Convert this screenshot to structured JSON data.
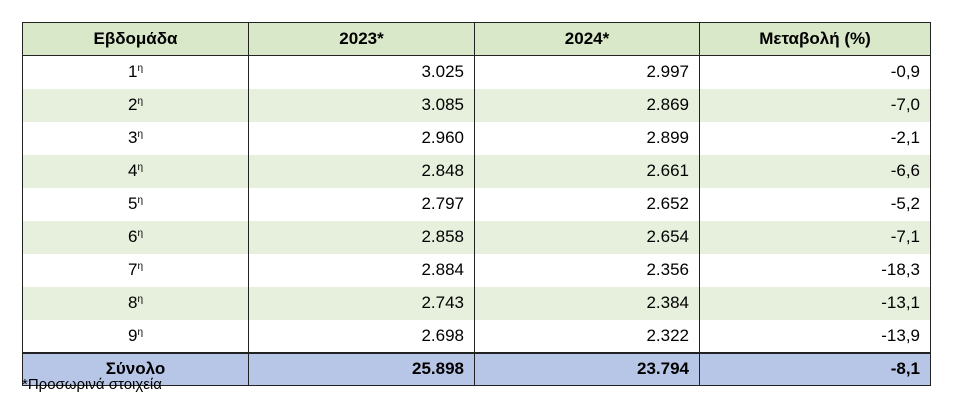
{
  "table": {
    "headers": [
      "Εβδομάδα",
      "2023*",
      "2024*",
      "Μεταβολή (%)"
    ],
    "rows": [
      {
        "week": "1",
        "sup": "η",
        "y2023": "3.025",
        "y2024": "2.997",
        "change": "-0,9"
      },
      {
        "week": "2",
        "sup": "η",
        "y2023": "3.085",
        "y2024": "2.869",
        "change": "-7,0"
      },
      {
        "week": "3",
        "sup": "η",
        "y2023": "2.960",
        "y2024": "2.899",
        "change": "-2,1"
      },
      {
        "week": "4",
        "sup": "η",
        "y2023": "2.848",
        "y2024": "2.661",
        "change": "-6,6"
      },
      {
        "week": "5",
        "sup": "η",
        "y2023": "2.797",
        "y2024": "2.652",
        "change": "-5,2"
      },
      {
        "week": "6",
        "sup": "η",
        "y2023": "2.858",
        "y2024": "2.654",
        "change": "-7,1"
      },
      {
        "week": "7",
        "sup": "η",
        "y2023": "2.884",
        "y2024": "2.356",
        "change": "-18,3"
      },
      {
        "week": "8",
        "sup": "η",
        "y2023": "2.743",
        "y2024": "2.384",
        "change": "-13,1"
      },
      {
        "week": "9",
        "sup": "η",
        "y2023": "2.698",
        "y2024": "2.322",
        "change": "-13,9"
      }
    ],
    "total": {
      "label": "Σύνολο",
      "y2023": "25.898",
      "y2024": "23.794",
      "change": "-8,1"
    }
  },
  "footnote": "*Προσωρινά στοιχεία",
  "colors": {
    "header_bg": "#d8e8c8",
    "stripe_bg": "#e6f0dc",
    "total_bg": "#b7c5e6"
  }
}
